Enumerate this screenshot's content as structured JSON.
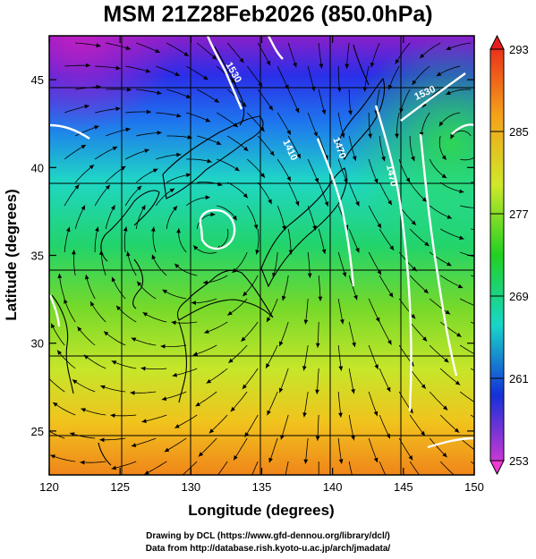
{
  "title": "MSM 21Z28Feb2026 (850.0hPa)",
  "x_axis": {
    "label": "Longitude (degrees)",
    "ticks": [
      "120",
      "125",
      "130",
      "135",
      "140",
      "145",
      "150"
    ],
    "range": [
      120,
      150
    ]
  },
  "y_axis": {
    "label": "Latitude  (degrees)",
    "ticks": [
      "25",
      "30",
      "35",
      "40",
      "45"
    ],
    "range": [
      22.5,
      47.5
    ]
  },
  "colorbar": {
    "labels": [
      "293",
      "285",
      "277",
      "269",
      "261",
      "253"
    ],
    "range": [
      253,
      293
    ]
  },
  "contour_labels": [
    "1530",
    "1530",
    "1470",
    "1470",
    "1410"
  ],
  "credits": {
    "line1": "Drawing by DCL (https://www.gfd-dennou.org/library/dcl/)",
    "line2": "Data from http://database.rish.kyoto-u.ac.jp/arch/jmadata/"
  }
}
